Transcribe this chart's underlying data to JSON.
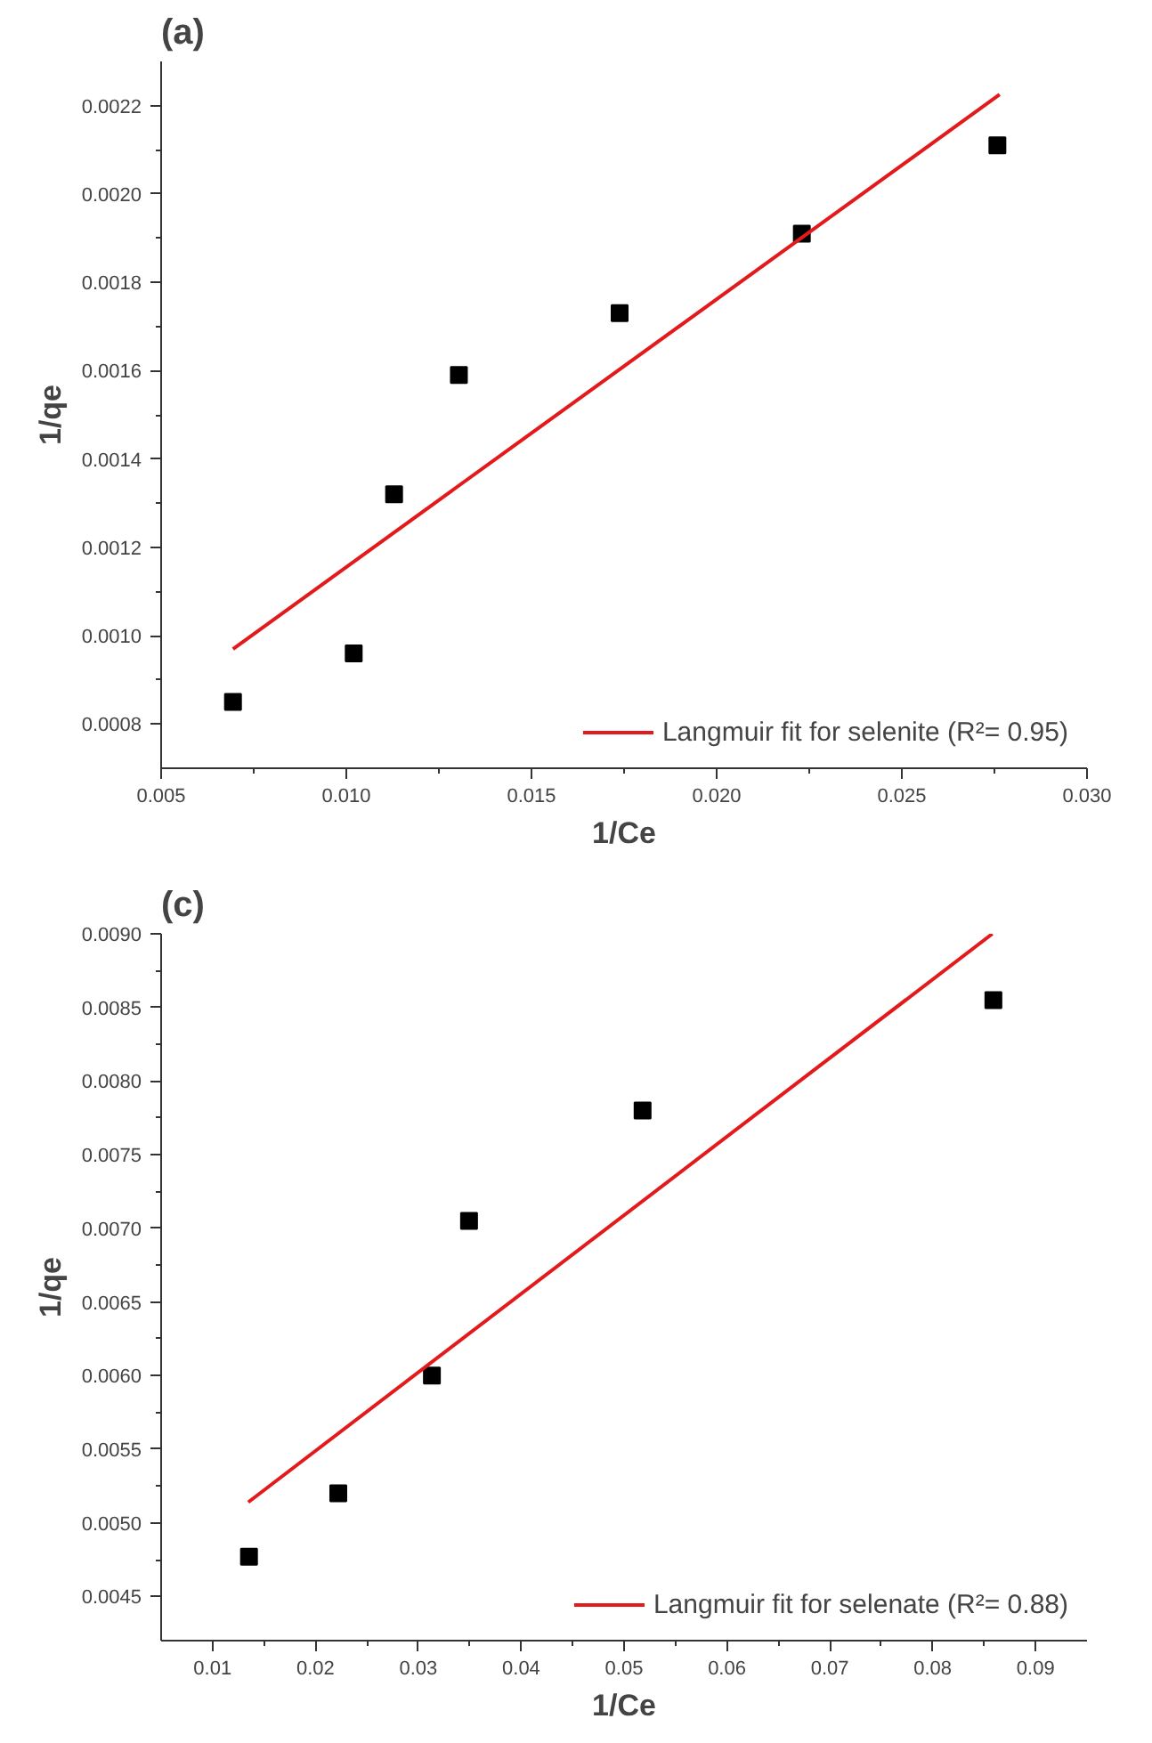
{
  "chart_data": [
    {
      "type": "scatter",
      "xlabel": "1/Ce",
      "ylabel": "1/qe",
      "annotations": [
        "(a)"
      ],
      "grid": false,
      "legend": "bottom right",
      "xlim": [
        0.005,
        0.03
      ],
      "ylim": [
        0.0007,
        0.0023
      ],
      "xticks": [
        {
          "value": 0.005,
          "label": "0.005"
        },
        {
          "value": 0.01,
          "label": "0.010"
        },
        {
          "value": 0.015,
          "label": "0.015"
        },
        {
          "value": 0.02,
          "label": "0.020"
        },
        {
          "value": 0.025,
          "label": "0.025"
        },
        {
          "value": 0.03,
          "label": "0.030"
        }
      ],
      "yticks": [
        {
          "value": 0.0008,
          "label": "0.0008"
        },
        {
          "value": 0.001,
          "label": "0.0010"
        },
        {
          "value": 0.0012,
          "label": "0.0012"
        },
        {
          "value": 0.0014,
          "label": "0.0014"
        },
        {
          "value": 0.0016,
          "label": "0.0016"
        },
        {
          "value": 0.0018,
          "label": "0.0018"
        },
        {
          "value": 0.002,
          "label": "0.0020"
        },
        {
          "value": 0.0022,
          "label": "0.0022"
        }
      ],
      "series": [
        {
          "marker": "square",
          "color": "#000000",
          "x": [
            0.00694,
            0.0102,
            0.01129,
            0.01304,
            0.01738,
            0.0223,
            0.02758
          ],
          "values": [
            0.00085,
            0.00096,
            0.00132,
            0.00159,
            0.00173,
            0.00191,
            0.00211
          ]
        },
        {
          "type": "line",
          "name": "Langmuir fit for selenite (R²= 0.95)",
          "color": "#e31a1c",
          "x": [
            0.00694,
            0.02764
          ],
          "values": [
            0.00097,
            0.002225
          ]
        }
      ]
    },
    {
      "type": "scatter",
      "xlabel": "1/Ce",
      "ylabel": "1/qe",
      "annotations": [
        "(c)"
      ],
      "grid": false,
      "legend": "bottom right",
      "xlim": [
        0.005,
        0.095
      ],
      "ylim": [
        0.0042,
        0.009
      ],
      "xticks": [
        0.01,
        0.02,
        0.03,
        0.04,
        0.05,
        0.06,
        0.07,
        0.08,
        0.09
      ],
      "yticks": [
        {
          "value": 0.0045,
          "label": "0.0045"
        },
        {
          "value": 0.005,
          "label": "0.0050"
        },
        {
          "value": 0.0055,
          "label": "0.0055"
        },
        {
          "value": 0.006,
          "label": "0.0060"
        },
        {
          "value": 0.0065,
          "label": "0.0065"
        },
        {
          "value": 0.007,
          "label": "0.0070"
        },
        {
          "value": 0.0075,
          "label": "0.0075"
        },
        {
          "value": 0.008,
          "label": "0.0080"
        },
        {
          "value": 0.0085,
          "label": "0.0085"
        },
        {
          "value": 0.009,
          "label": "0.0090"
        }
      ],
      "series": [
        {
          "marker": "square",
          "color": "#000000",
          "x": [
            0.01354,
            0.02222,
            0.03132,
            0.03493,
            0.0518,
            0.0859
          ],
          "values": [
            0.00477,
            0.0052,
            0.006,
            0.00705,
            0.0078,
            0.00855
          ]
        },
        {
          "type": "line",
          "name": "Langmuir fit for selenate (R²= 0.88)",
          "color": "#e31a1c",
          "x": [
            0.01347,
            0.0858
          ],
          "values": [
            0.00514,
            0.009
          ]
        }
      ]
    }
  ]
}
